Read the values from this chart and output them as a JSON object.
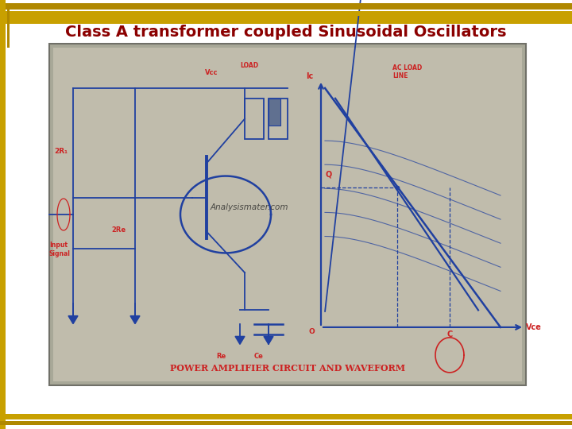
{
  "title": "Class A transformer coupled Sinusoidal Oscillators",
  "title_color": "#8B0000",
  "title_fontsize": 14,
  "slide_bg": "#FFFFFF",
  "border_color1": "#C8A000",
  "border_color2": "#B08800",
  "left_bar_color": "#C8A000",
  "photo_bg": "#B8B4A0",
  "photo_edge": "#888880",
  "circuit_color": "#2040A0",
  "red_color": "#CC2222",
  "watermark": "Analysismater.com",
  "image_label": "POWER AMPLIFIER CIRCUIT AND WAVEFORM"
}
